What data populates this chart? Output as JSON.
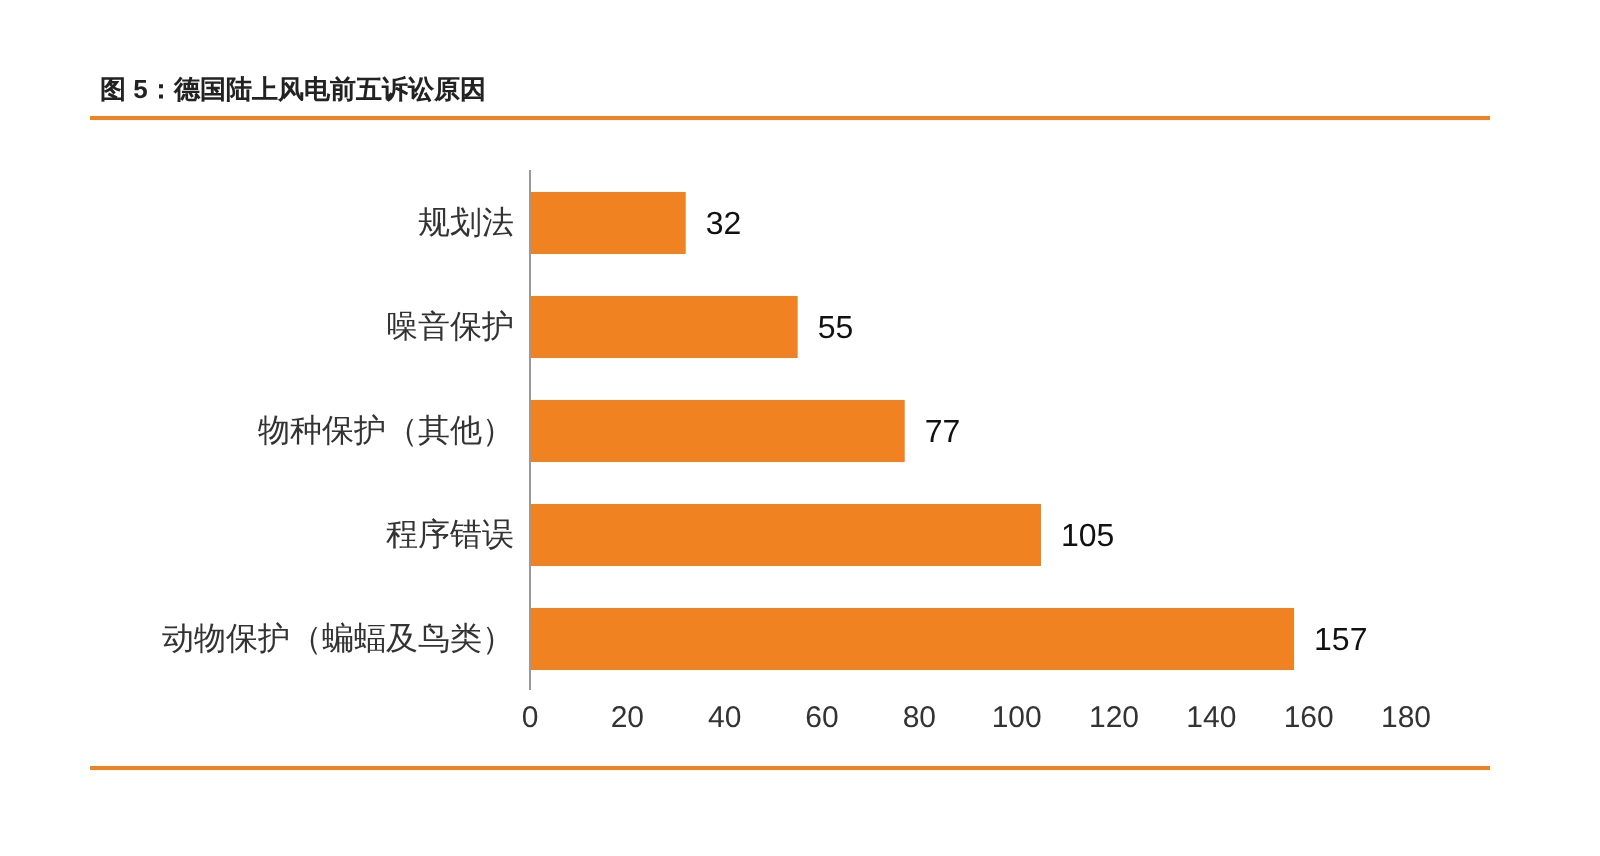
{
  "chart_data": {
    "type": "bar",
    "orientation": "horizontal",
    "title": "图 5：德国陆上风电前五诉讼原因",
    "categories": [
      "规划法",
      "噪音保护",
      "物种保护（其他）",
      "程序错误",
      "动物保护（蝙蝠及鸟类）"
    ],
    "values": [
      32,
      55,
      77,
      105,
      157
    ],
    "color": "#f08221",
    "xlim": [
      0,
      180
    ],
    "xticks": [
      0,
      20,
      40,
      60,
      80,
      100,
      120,
      140,
      160,
      180
    ],
    "data_labels": true
  }
}
